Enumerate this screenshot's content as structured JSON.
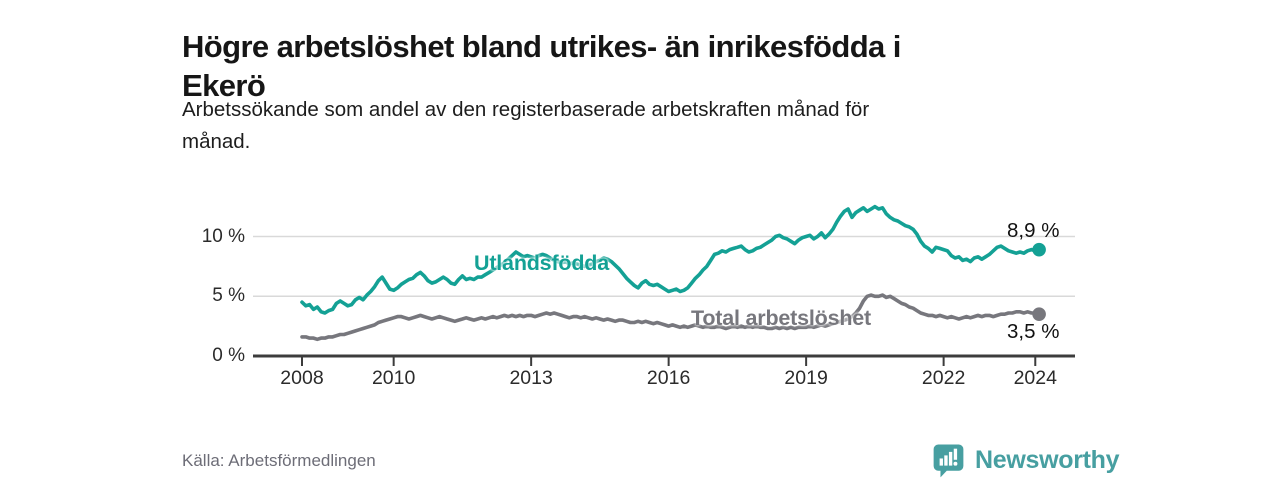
{
  "header": {
    "title_line1": "Högre arbetslöshet bland utrikes- än inrikesfödda i",
    "title_line2": "Ekerö",
    "subtitle_line1": "Arbetssökande som andel av den registerbaserade arbetskraften månad för",
    "subtitle_line2": "månad."
  },
  "chart_data": {
    "type": "line",
    "title": "Högre arbetslöshet bland utrikes- än inrikesfödda i Ekerö",
    "subtitle": "Arbetssökande som andel av den registerbaserade arbetskraften månad för månad.",
    "frequency": "monthly",
    "x_start_year": 2008,
    "x_end": "2024-02",
    "x_tick_years": [
      2008,
      2010,
      2013,
      2016,
      2019,
      2022,
      2024
    ],
    "x_tick_labels": [
      "2008",
      "2010",
      "2013",
      "2016",
      "2019",
      "2022",
      "2024"
    ],
    "y_tick_values": [
      0,
      5,
      10
    ],
    "y_tick_labels": [
      "0 %",
      "5 %",
      "10 %"
    ],
    "ylim": [
      0,
      13.6
    ],
    "grid": "horizontal",
    "legend": "inline-labels",
    "xlabel": "",
    "ylabel": "",
    "series": [
      {
        "name": "Utlandsfödda",
        "color": "#14a195",
        "end_label": "8,9 %",
        "end_value": 8.9,
        "values": [
          4.5,
          4.2,
          4.3,
          3.9,
          4.1,
          3.7,
          3.6,
          3.8,
          3.9,
          4.4,
          4.6,
          4.4,
          4.2,
          4.3,
          4.7,
          4.9,
          4.7,
          5.1,
          5.4,
          5.8,
          6.3,
          6.6,
          6.1,
          5.6,
          5.5,
          5.7,
          6.0,
          6.2,
          6.4,
          6.5,
          6.8,
          7.0,
          6.7,
          6.3,
          6.1,
          6.2,
          6.4,
          6.6,
          6.4,
          6.1,
          6.0,
          6.4,
          6.7,
          6.4,
          6.5,
          6.4,
          6.6,
          6.6,
          6.8,
          7.0,
          7.2,
          7.4,
          7.6,
          7.8,
          8.1,
          8.4,
          8.7,
          8.5,
          8.3,
          8.4,
          8.3,
          8.2,
          8.4,
          8.5,
          8.4,
          8.2,
          8.0,
          7.9,
          7.8,
          7.9,
          7.7,
          7.8,
          7.7,
          7.6,
          7.5,
          7.6,
          7.7,
          7.9,
          8.0,
          8.2,
          8.1,
          7.9,
          7.6,
          7.3,
          6.9,
          6.5,
          6.2,
          5.9,
          5.7,
          6.1,
          6.3,
          6.0,
          5.9,
          6.0,
          5.8,
          5.6,
          5.4,
          5.5,
          5.6,
          5.4,
          5.5,
          5.7,
          6.1,
          6.5,
          6.8,
          7.2,
          7.5,
          8.0,
          8.5,
          8.6,
          8.8,
          8.7,
          8.9,
          9.0,
          9.1,
          9.2,
          8.9,
          8.7,
          8.8,
          9.0,
          9.1,
          9.3,
          9.5,
          9.7,
          10.0,
          10.1,
          9.9,
          9.8,
          9.6,
          9.4,
          9.7,
          9.9,
          10.0,
          10.1,
          9.8,
          10.0,
          10.3,
          9.9,
          10.2,
          10.6,
          11.2,
          11.7,
          12.1,
          12.3,
          11.6,
          12.0,
          12.2,
          12.4,
          12.1,
          12.3,
          12.5,
          12.3,
          12.4,
          11.9,
          11.6,
          11.4,
          11.3,
          11.1,
          10.9,
          10.8,
          10.6,
          10.2,
          9.6,
          9.2,
          9.0,
          8.7,
          9.1,
          9.0,
          8.9,
          8.8,
          8.4,
          8.2,
          8.3,
          8.0,
          8.1,
          7.9,
          8.2,
          8.3,
          8.1,
          8.3,
          8.5,
          8.8,
          9.1,
          9.2,
          9.0,
          8.8,
          8.7,
          8.6,
          8.7,
          8.6,
          8.8,
          8.9,
          8.8,
          8.9
        ]
      },
      {
        "name": "Total arbetslöshet",
        "color": "#77777d",
        "end_label": "3,5 %",
        "end_value": 3.5,
        "values": [
          1.6,
          1.6,
          1.5,
          1.5,
          1.4,
          1.5,
          1.5,
          1.6,
          1.6,
          1.7,
          1.8,
          1.8,
          1.9,
          2.0,
          2.1,
          2.2,
          2.3,
          2.4,
          2.5,
          2.6,
          2.8,
          2.9,
          3.0,
          3.1,
          3.2,
          3.3,
          3.3,
          3.2,
          3.1,
          3.2,
          3.3,
          3.4,
          3.3,
          3.2,
          3.1,
          3.2,
          3.3,
          3.2,
          3.1,
          3.0,
          2.9,
          3.0,
          3.1,
          3.2,
          3.1,
          3.0,
          3.1,
          3.2,
          3.1,
          3.2,
          3.3,
          3.2,
          3.3,
          3.4,
          3.3,
          3.4,
          3.3,
          3.4,
          3.3,
          3.4,
          3.4,
          3.3,
          3.4,
          3.5,
          3.6,
          3.5,
          3.6,
          3.5,
          3.4,
          3.3,
          3.2,
          3.3,
          3.3,
          3.2,
          3.3,
          3.2,
          3.1,
          3.2,
          3.1,
          3.0,
          3.1,
          3.0,
          2.9,
          3.0,
          3.0,
          2.9,
          2.8,
          2.8,
          2.9,
          2.8,
          2.9,
          2.8,
          2.7,
          2.8,
          2.7,
          2.6,
          2.5,
          2.6,
          2.5,
          2.4,
          2.5,
          2.4,
          2.5,
          2.6,
          2.5,
          2.4,
          2.5,
          2.4,
          2.4,
          2.5,
          2.4,
          2.3,
          2.4,
          2.5,
          2.4,
          2.5,
          2.4,
          2.5,
          2.4,
          2.5,
          2.4,
          2.4,
          2.3,
          2.3,
          2.4,
          2.3,
          2.4,
          2.3,
          2.4,
          2.3,
          2.4,
          2.4,
          2.4,
          2.5,
          2.4,
          2.5,
          2.6,
          2.5,
          2.6,
          2.7,
          2.8,
          2.9,
          3.0,
          3.1,
          3.3,
          3.6,
          4.0,
          4.6,
          5.0,
          5.1,
          5.0,
          5.0,
          5.1,
          4.9,
          5.0,
          4.8,
          4.6,
          4.4,
          4.3,
          4.1,
          4.0,
          3.8,
          3.6,
          3.5,
          3.4,
          3.4,
          3.3,
          3.4,
          3.3,
          3.2,
          3.3,
          3.2,
          3.1,
          3.2,
          3.3,
          3.2,
          3.3,
          3.4,
          3.3,
          3.4,
          3.4,
          3.3,
          3.4,
          3.5,
          3.5,
          3.6,
          3.6,
          3.7,
          3.7,
          3.6,
          3.7,
          3.6,
          3.6,
          3.5
        ]
      }
    ]
  },
  "footer": {
    "source": "Källa: Arbetsförmedlingen",
    "brand": "Newsworthy",
    "brand_color": "#479fa1",
    "logo_icon": "bar-chart-speech-bubble-icon"
  },
  "colors": {
    "accent_teal": "#14a195",
    "line_gray": "#77777d",
    "axis": "#3c3c3c",
    "grid": "#d9d9d9",
    "title_text": "#161616",
    "muted_text": "#6d6d77"
  }
}
